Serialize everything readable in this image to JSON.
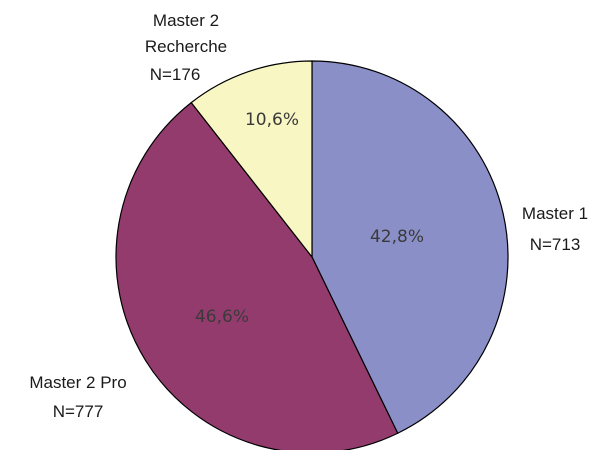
{
  "chart_data": {
    "type": "pie",
    "title": "",
    "start_angle_deg": 0,
    "direction": "clockwise",
    "slices": [
      {
        "category_lines": [
          "Master 1"
        ],
        "count_label": "N=713",
        "value": 713,
        "percent_label": "42,8%",
        "color": "#8b8fc8"
      },
      {
        "category_lines": [
          "Master 2 Pro"
        ],
        "count_label": "N=777",
        "value": 777,
        "percent_label": "46,6%",
        "color": "#943b6e"
      },
      {
        "category_lines": [
          "Master 2",
          "Recherche"
        ],
        "count_label": "N=176",
        "value": 176,
        "percent_label": "10,6%",
        "color": "#f8f6c3"
      }
    ],
    "legend": "none"
  }
}
